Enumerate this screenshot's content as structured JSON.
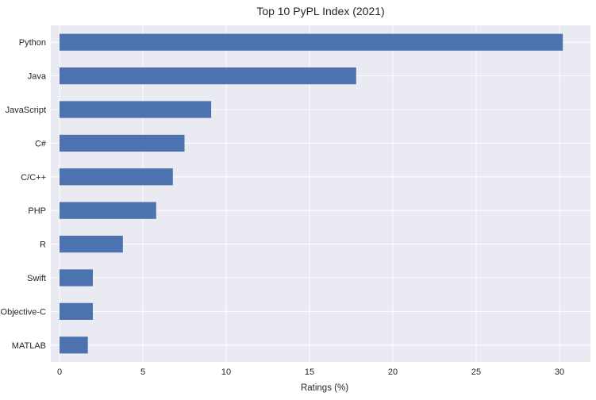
{
  "chart_data": {
    "type": "bar",
    "orientation": "horizontal",
    "title": "Top 10 PyPL Index (2021)",
    "xlabel": "Ratings (%)",
    "ylabel": "",
    "categories": [
      "Python",
      "Java",
      "JavaScript",
      "C#",
      "C/C++",
      "PHP",
      "R",
      "Swift",
      "Objective-C",
      "MATLAB"
    ],
    "values": [
      30.2,
      17.8,
      9.1,
      7.5,
      6.8,
      5.8,
      3.8,
      2.0,
      2.0,
      1.7
    ],
    "xlim": [
      0,
      31.7
    ],
    "xticks": [
      "0",
      "5",
      "10",
      "15",
      "20",
      "25",
      "30"
    ],
    "grid": true,
    "legend": "none",
    "colors": {
      "bar": "#4c72b0",
      "background": "#eaeaf2",
      "grid": "#ffffff",
      "text": "#262626"
    }
  }
}
